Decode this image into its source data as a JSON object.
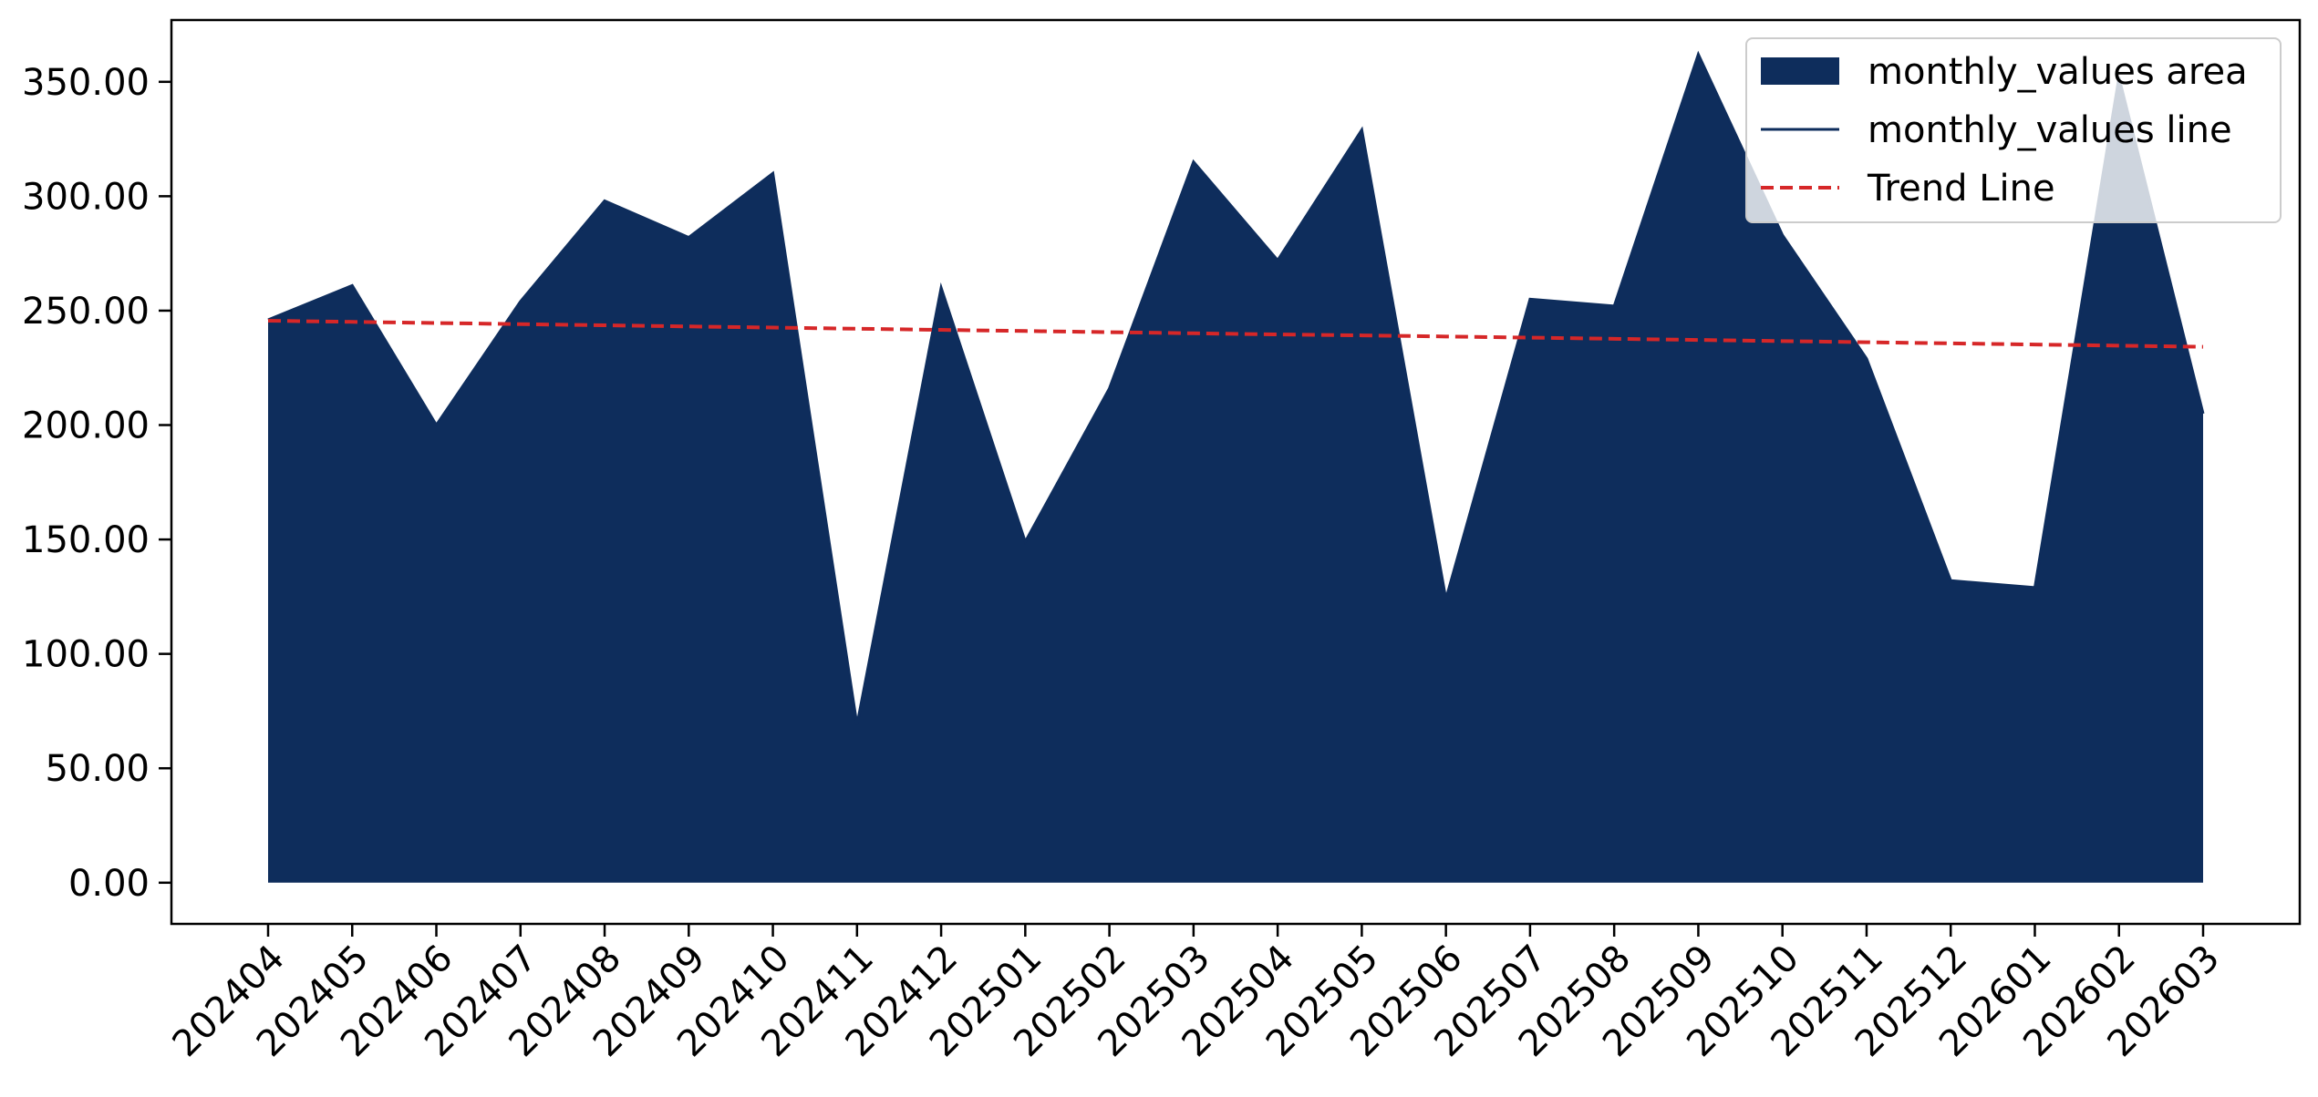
{
  "chart_data": {
    "type": "area",
    "title": "",
    "xlabel": "",
    "ylabel": "",
    "categories": [
      "202404",
      "202405",
      "202406",
      "202407",
      "202408",
      "202409",
      "202410",
      "202411",
      "202412",
      "202501",
      "202502",
      "202503",
      "202504",
      "202505",
      "202506",
      "202507",
      "202508",
      "202509",
      "202510",
      "202511",
      "202512",
      "202601",
      "202602",
      "202603"
    ],
    "series": [
      {
        "name": "monthly_values area",
        "kind": "area",
        "color": "#0e2d5c",
        "values": [
          246,
          261,
          200,
          254,
          298,
          282,
          310,
          69,
          260,
          149,
          216,
          315,
          272,
          329,
          124,
          255,
          252,
          362,
          283,
          229,
          132,
          129,
          352,
          205
        ]
      },
      {
        "name": "monthly_values line",
        "kind": "line",
        "color": "#0e2d5c",
        "values": [
          246,
          261,
          200,
          254,
          298,
          282,
          310,
          69,
          260,
          149,
          216,
          315,
          272,
          329,
          124,
          255,
          252,
          362,
          283,
          229,
          132,
          129,
          352,
          205
        ]
      },
      {
        "name": "Trend Line",
        "kind": "line",
        "style": "dashed",
        "color": "#d62728",
        "values": [
          245.6,
          245.1,
          244.6,
          244.1,
          243.6,
          243.1,
          242.6,
          242.1,
          241.6,
          241.1,
          240.6,
          240.1,
          239.6,
          239.2,
          238.7,
          238.2,
          237.7,
          237.2,
          236.7,
          236.2,
          235.7,
          235.2,
          234.7,
          234.2
        ]
      }
    ],
    "ylim": [
      -18,
      377
    ],
    "yticks": [
      0,
      50,
      100,
      150,
      200,
      250,
      300,
      350
    ],
    "ytick_labels": [
      "0.00",
      "50.00",
      "100.00",
      "150.00",
      "200.00",
      "250.00",
      "300.00",
      "350.00"
    ],
    "grid": false,
    "legend": {
      "position": "top-right",
      "entries": [
        "monthly_values area",
        "monthly_values line",
        "Trend Line"
      ]
    }
  }
}
